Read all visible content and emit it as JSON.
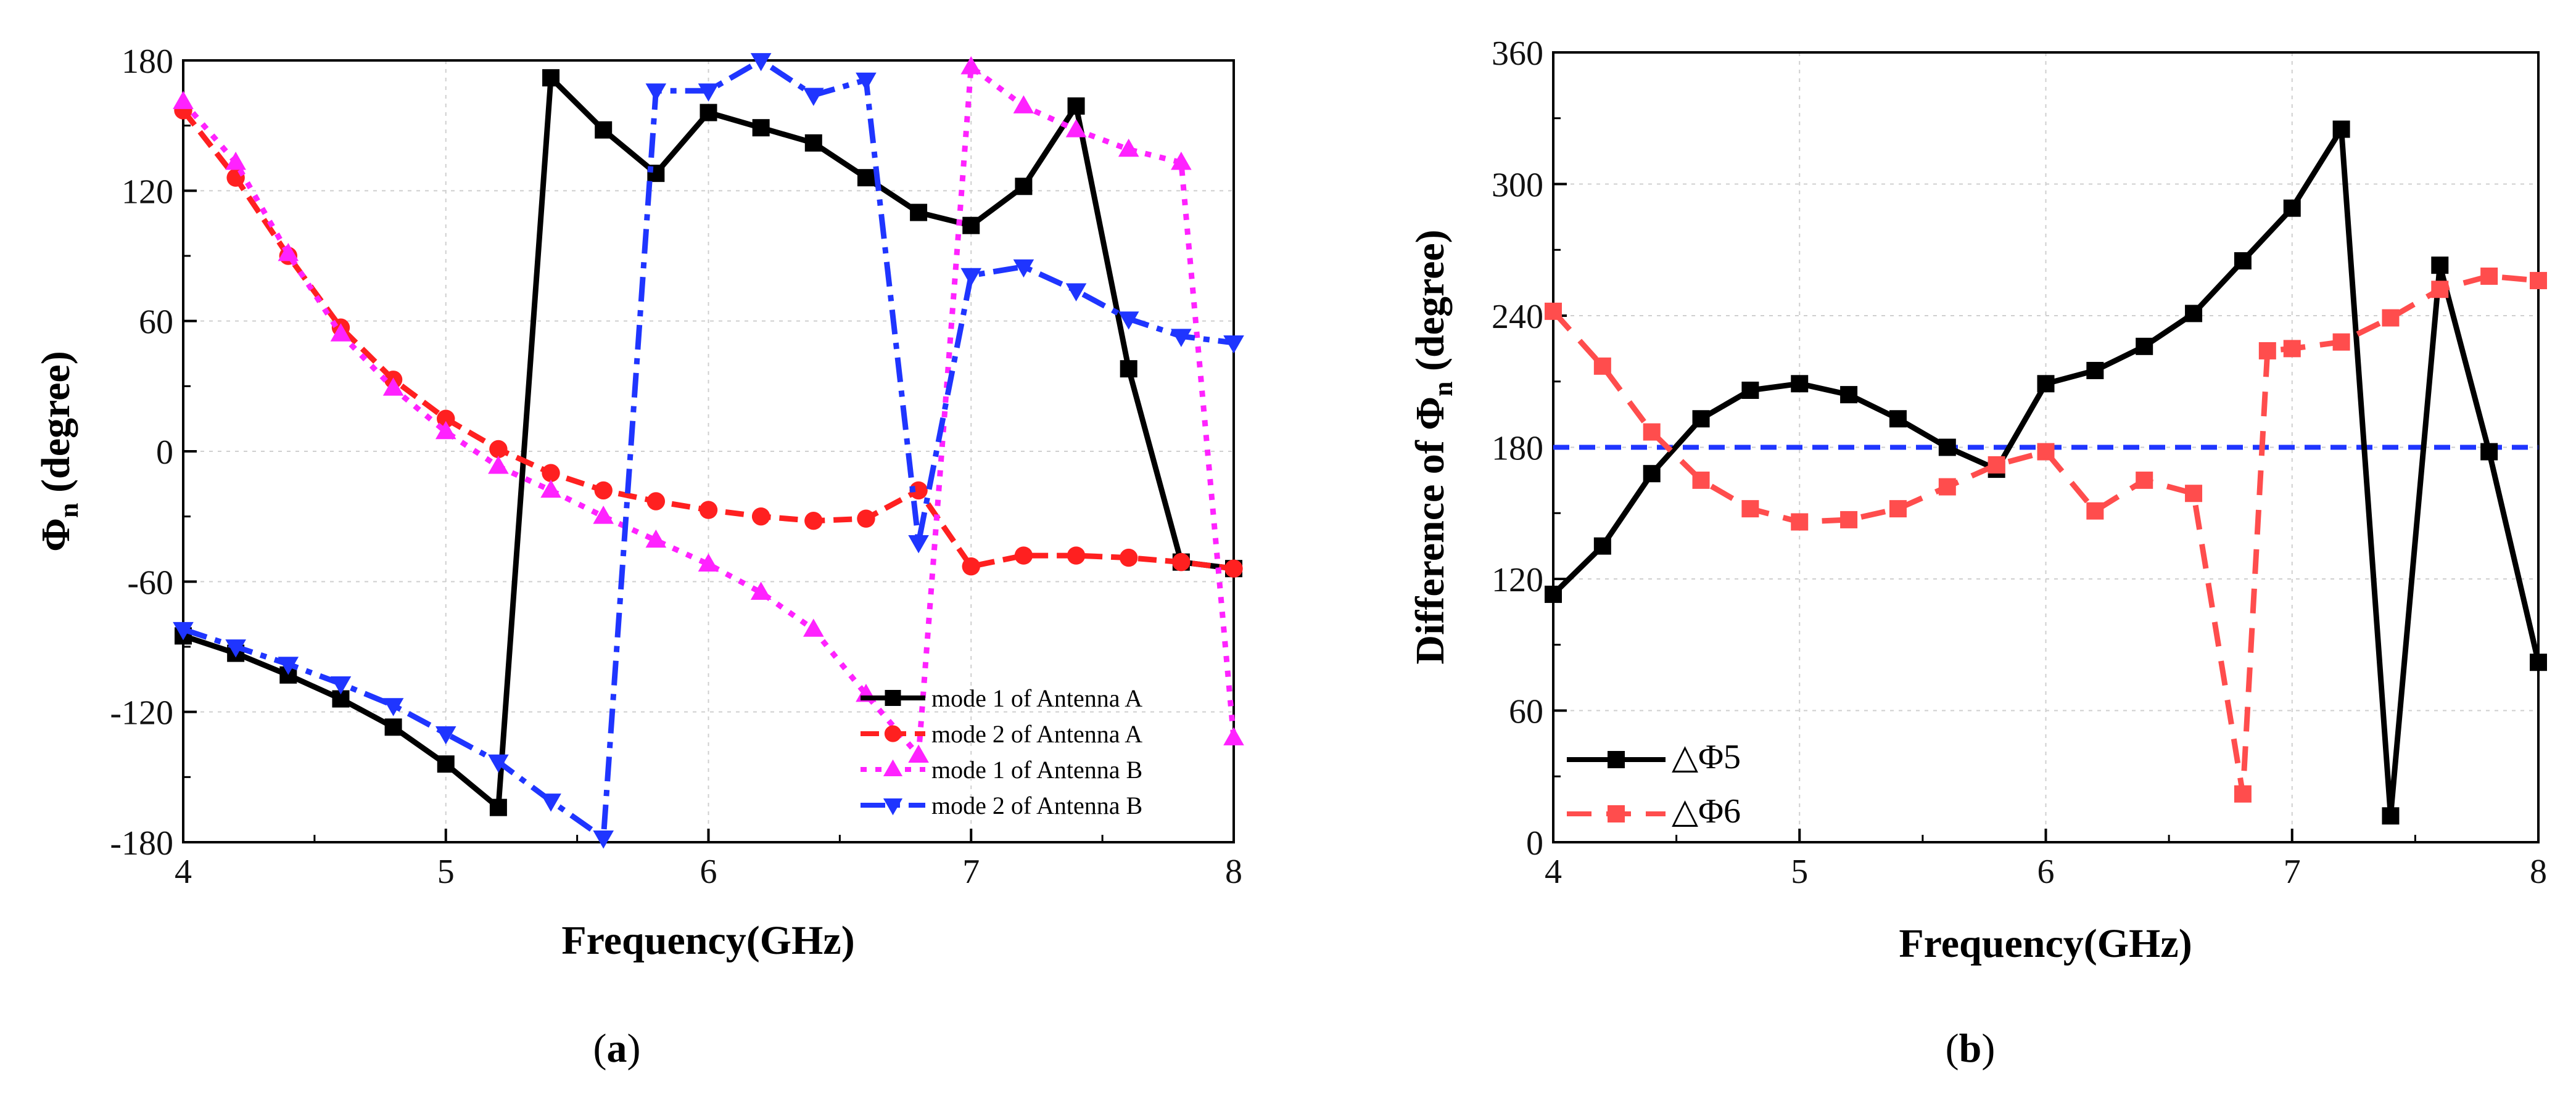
{
  "chart_data": [
    {
      "type": "line",
      "panel_label": "(a)",
      "panel_letter": "a",
      "xlabel": "Frequency(GHz)",
      "ylabel": "Φn (degree)",
      "ylabel_main": "Φ",
      "ylabel_sub": "n",
      "ylabel_rest": " (degree)",
      "xlim": [
        4,
        8
      ],
      "ylim": [
        -180,
        180
      ],
      "xticks": [
        "4",
        "5",
        "6",
        "7",
        "8"
      ],
      "yticks": [
        "-180",
        "-120",
        "-60",
        "0",
        "60",
        "120",
        "180"
      ],
      "legend_position": "bottom-right",
      "series": [
        {
          "name": "mode 1 of Antenna A",
          "color": "#000000",
          "marker": "square",
          "x": [
            4.0,
            4.2,
            4.4,
            4.6,
            4.8,
            5.0,
            5.2,
            5.4,
            5.6,
            5.8,
            6.0,
            6.2,
            6.4,
            6.6,
            6.8,
            7.0,
            7.2,
            7.4,
            7.6,
            7.8,
            8.0
          ],
          "y": [
            -85,
            -93,
            -103,
            -114,
            -127,
            -144,
            -164,
            172,
            148,
            128,
            156,
            149,
            142,
            126,
            110,
            104,
            122,
            159,
            38,
            -51,
            -54
          ]
        },
        {
          "name": "mode 2 of Antenna A",
          "color": "#ff2020",
          "marker": "circle",
          "x": [
            4.0,
            4.2,
            4.4,
            4.6,
            4.8,
            5.0,
            5.2,
            5.4,
            5.6,
            5.8,
            6.0,
            6.2,
            6.4,
            6.6,
            6.8,
            7.0,
            7.2,
            7.4,
            7.6,
            7.8,
            8.0
          ],
          "y": [
            157,
            126,
            90,
            57,
            33,
            15,
            1,
            -10,
            -18,
            -23,
            -27,
            -30,
            -32,
            -31,
            -18,
            -53,
            -48,
            -48,
            -49,
            -51,
            -54
          ]
        },
        {
          "name": "mode 1 of Antenna B",
          "color": "#ff22ff",
          "marker": "triangle-up",
          "x": [
            4.0,
            4.2,
            4.4,
            4.6,
            4.8,
            5.0,
            5.2,
            5.4,
            5.6,
            5.8,
            6.0,
            6.2,
            6.4,
            6.6,
            6.8,
            7.0,
            7.2,
            7.4,
            7.6,
            7.8,
            8.0
          ],
          "y": [
            161,
            133,
            91,
            54,
            29,
            9,
            -7,
            -18,
            -30,
            -41,
            -52,
            -65,
            -82,
            -112,
            -140,
            177,
            159,
            148,
            139,
            133,
            -132
          ]
        },
        {
          "name": "mode 2 of Antenna B",
          "color": "#1f35ff",
          "marker": "triangle-down",
          "x": [
            4.0,
            4.2,
            4.4,
            4.6,
            4.8,
            5.0,
            5.2,
            5.4,
            5.6,
            5.8,
            6.0,
            6.2,
            6.4,
            6.6,
            6.8,
            7.0,
            7.2,
            7.4,
            7.6,
            7.8,
            8.0
          ],
          "y": [
            -82,
            -90,
            -98,
            -107,
            -117,
            -130,
            -143,
            -161,
            -178,
            166,
            166,
            180,
            164,
            171,
            -42,
            81,
            85,
            74,
            61,
            53,
            50
          ]
        }
      ]
    },
    {
      "type": "line",
      "panel_label": "(b)",
      "panel_letter": "b",
      "xlabel": "Frequency(GHz)",
      "ylabel": "Difference of Φn (degree)",
      "ylabel_main": "Difference of Φ",
      "ylabel_sub": "n",
      "ylabel_rest": " (degree)",
      "xlim": [
        4,
        8
      ],
      "ylim": [
        0,
        360
      ],
      "xticks": [
        "4",
        "5",
        "6",
        "7",
        "8"
      ],
      "yticks": [
        "0",
        "60",
        "120",
        "180",
        "240",
        "300",
        "360"
      ],
      "legend_position": "bottom-left",
      "reference_line": {
        "y": 180,
        "color": "#1f35ff"
      },
      "series": [
        {
          "name": "△Φ5",
          "color": "#000000",
          "marker": "square",
          "x": [
            4.0,
            4.2,
            4.4,
            4.6,
            4.8,
            5.0,
            5.2,
            5.4,
            5.6,
            5.8,
            6.0,
            6.2,
            6.4,
            6.6,
            6.8,
            7.0,
            7.2,
            7.4,
            7.6,
            7.8,
            8.0
          ],
          "y": [
            113,
            135,
            168,
            193,
            206,
            209,
            204,
            193,
            180,
            170,
            209,
            215,
            226,
            241,
            265,
            289,
            325,
            12,
            263,
            178,
            82
          ]
        },
        {
          "name": "△Φ6",
          "color": "#ff4d4d",
          "marker": "square",
          "x": [
            4.0,
            4.2,
            4.4,
            4.6,
            4.8,
            5.0,
            5.2,
            5.4,
            5.6,
            5.8,
            6.0,
            6.2,
            6.4,
            6.6,
            6.8,
            6.9,
            7.0,
            7.2,
            7.4,
            7.6,
            7.8,
            8.0
          ],
          "y": [
            242,
            217,
            187,
            165,
            152,
            146,
            147,
            152,
            162,
            172,
            178,
            151,
            165,
            159,
            22,
            224,
            225,
            228,
            239,
            252,
            258,
            256
          ]
        }
      ]
    }
  ]
}
